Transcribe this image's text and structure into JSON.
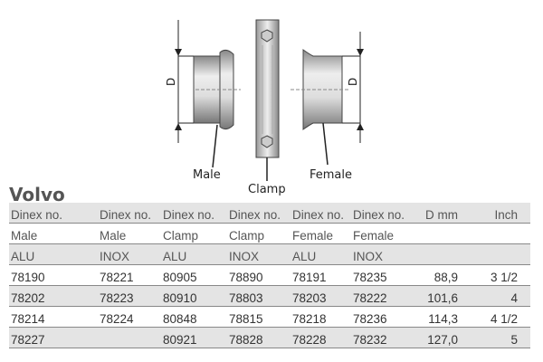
{
  "diagram": {
    "male_label": "Male",
    "clamp_label": "Clamp",
    "female_label": "Female",
    "dimension_label": "D"
  },
  "brand": "Volvo",
  "table": {
    "header_rows": [
      [
        "Dinex no.",
        "Dinex no.",
        "Dinex no.",
        "Dinex no.",
        "Dinex no.",
        "Dinex no.",
        "D mm",
        "Inch"
      ],
      [
        "Male",
        "Male",
        "Clamp",
        "Clamp",
        "Female",
        "Female",
        "",
        ""
      ],
      [
        "ALU",
        "INOX",
        "ALU",
        "INOX",
        "ALU",
        "INOX",
        "",
        ""
      ]
    ],
    "rows": [
      [
        "78190",
        "78221",
        "80905",
        "78890",
        "78191",
        "78235",
        "88,9",
        "3 1/2"
      ],
      [
        "78202",
        "78223",
        "80910",
        "78803",
        "78203",
        "78222",
        "101,6",
        "4"
      ],
      [
        "78214",
        "78224",
        "80848",
        "78815",
        "78218",
        "78236",
        "114,3",
        "4 1/2"
      ],
      [
        "78227",
        "",
        "80921",
        "78828",
        "78228",
        "78232",
        "127,0",
        "5"
      ]
    ]
  }
}
